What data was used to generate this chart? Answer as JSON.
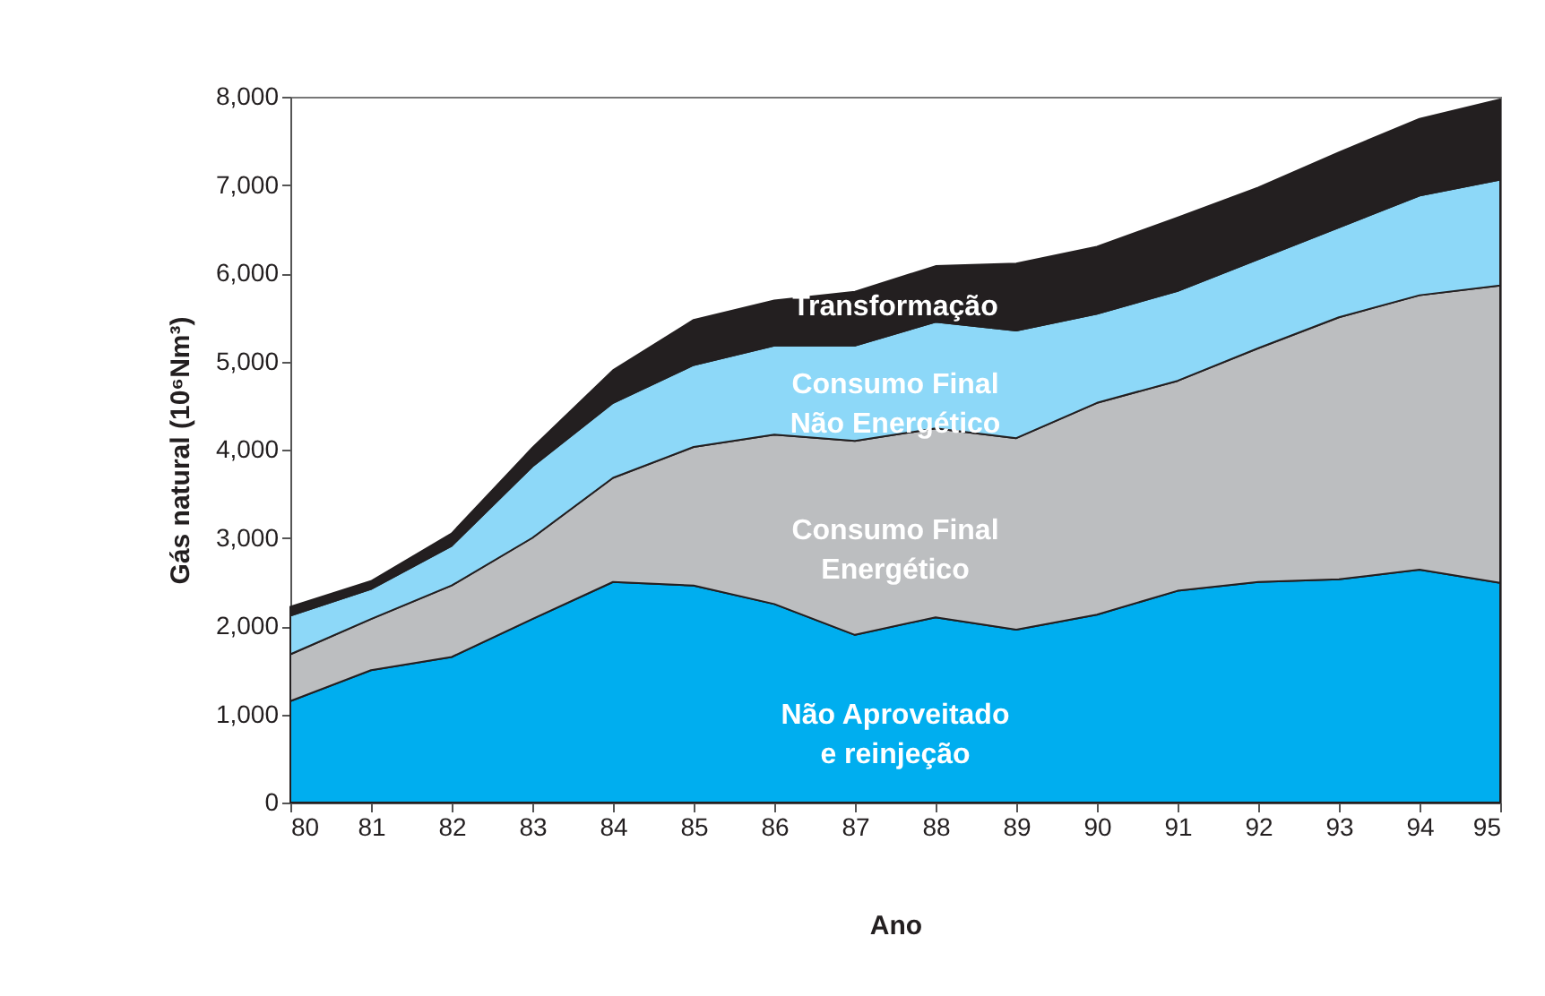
{
  "chart_data": {
    "type": "area",
    "stacked": true,
    "xlabel": "Ano",
    "ylabel": "Gás natural (10⁶Nm³)",
    "categories": [
      "80",
      "81",
      "82",
      "83",
      "84",
      "85",
      "86",
      "87",
      "88",
      "89",
      "90",
      "91",
      "92",
      "93",
      "94",
      "95"
    ],
    "ylim": [
      0,
      8000
    ],
    "yticks": [
      0,
      {
        "value": 1000,
        "label": "1,000"
      },
      {
        "value": 2000,
        "label": "2,000"
      },
      {
        "value": 3000,
        "label": "3,000"
      },
      {
        "value": 4000,
        "label": "4,000"
      },
      {
        "value": 5000,
        "label": "5,000"
      },
      {
        "value": 6000,
        "label": "6,000"
      },
      {
        "value": 7000,
        "label": "7,000"
      },
      {
        "value": 8000,
        "label": "8,000"
      }
    ],
    "grid": false,
    "series": [
      {
        "name": "Não Aproveitado e reinjeção",
        "color": "#00aeef",
        "values": [
          1150,
          1500,
          1650,
          2080,
          2500,
          2460,
          2250,
          1900,
          2100,
          1960,
          2130,
          2400,
          2500,
          2530,
          2640,
          2490
        ]
      },
      {
        "name": "Consumo Final Energético",
        "color": "#bcbec0",
        "values": [
          530,
          580,
          810,
          920,
          1180,
          1570,
          1920,
          2200,
          2140,
          2170,
          2400,
          2380,
          2650,
          2970,
          3110,
          3370
        ]
      },
      {
        "name": "Consumo Final Não Energético",
        "color": "#8dd8f8",
        "values": [
          440,
          340,
          450,
          810,
          850,
          930,
          1010,
          1080,
          1210,
          1220,
          1010,
          1020,
          1010,
          1020,
          1130,
          1200
        ]
      },
      {
        "name": "Transformação",
        "color": "#231f20",
        "values": [
          100,
          90,
          140,
          210,
          370,
          510,
          510,
          610,
          630,
          760,
          760,
          830,
          810,
          850,
          870,
          910
        ]
      }
    ]
  }
}
